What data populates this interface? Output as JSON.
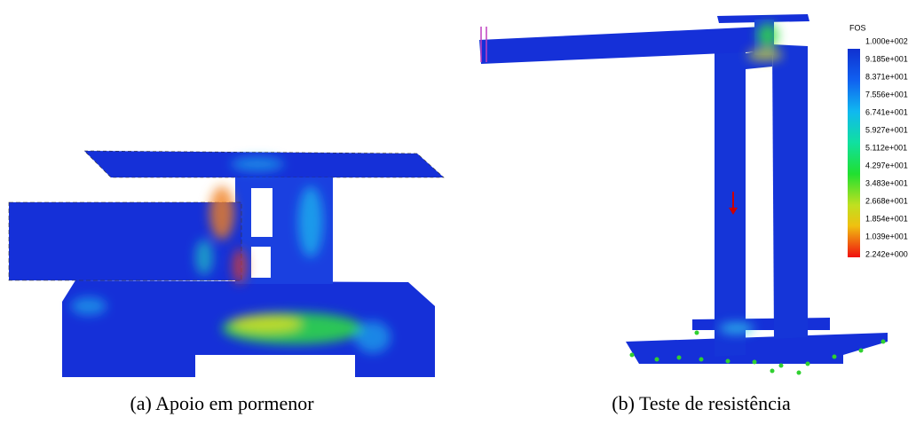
{
  "figure": {
    "subfigures": [
      {
        "caption": "(a) Apoio em pormenor"
      },
      {
        "caption": "(b) Teste de resistência"
      }
    ],
    "legend": {
      "title": "FOS",
      "labels": [
        "1.000e+002",
        "9.185e+001",
        "8.371e+001",
        "7.556e+001",
        "6.741e+001",
        "5.927e+001",
        "5.112e+001",
        "4.297e+001",
        "3.483e+001",
        "2.668e+001",
        "1.854e+001",
        "1.039e+001",
        "2.242e+000"
      ]
    }
  }
}
